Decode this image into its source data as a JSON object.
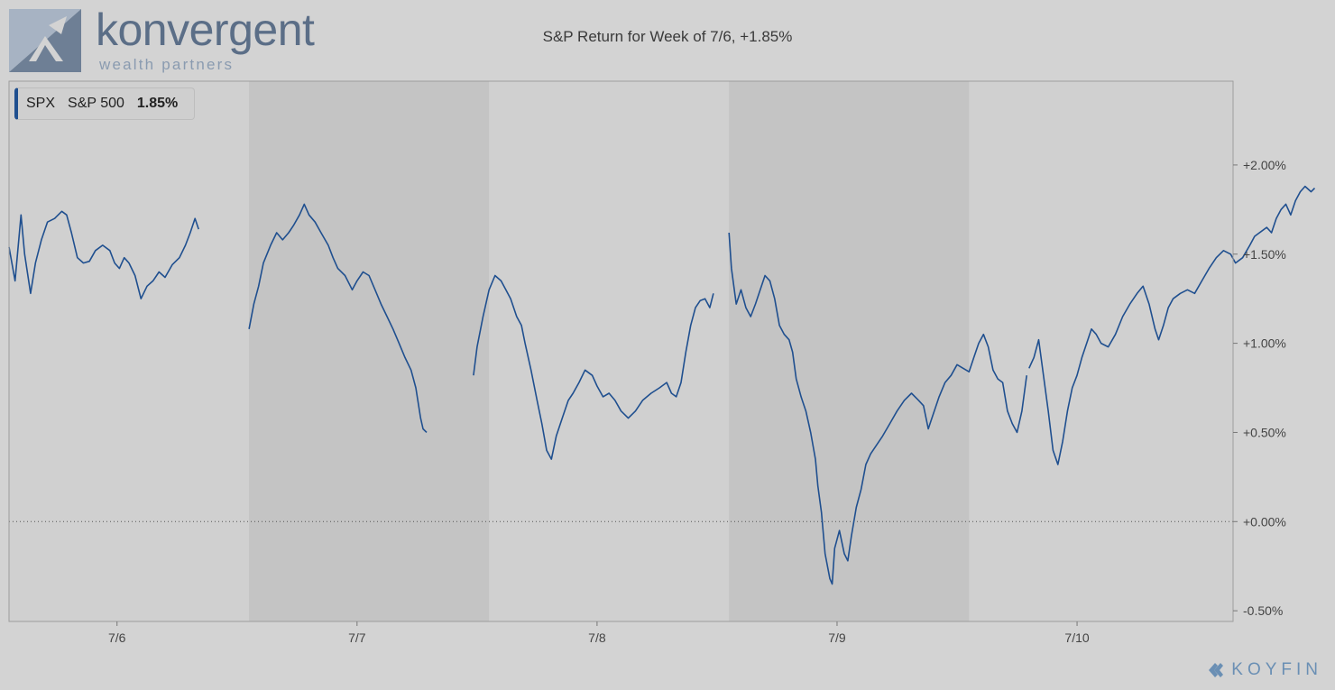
{
  "logo": {
    "name": "konvergent",
    "sub": "wealth partners"
  },
  "chart_data": {
    "type": "line",
    "title": "S&P Return for Week of 7/6, +1.85%",
    "legend": {
      "ticker": "SPX",
      "name": "S&P 500",
      "value": "1.85%"
    },
    "x_labels": [
      "7/6",
      "7/7",
      "7/8",
      "7/9",
      "7/10"
    ],
    "y_ticks": [
      {
        "value": 2.0,
        "label": "+2.00%"
      },
      {
        "value": 1.5,
        "label": "+1.50%"
      },
      {
        "value": 1.0,
        "label": "+1.00%"
      },
      {
        "value": 0.5,
        "label": "+0.50%"
      },
      {
        "value": 0.0,
        "label": "+0.00%"
      },
      {
        "value": -0.5,
        "label": "-0.50%"
      }
    ],
    "ylim": [
      -0.56,
      2.47
    ],
    "xlim": [
      0,
      5.1
    ],
    "zero_line": true,
    "shaded_days": [
      1,
      3
    ],
    "colors": {
      "line": "#1f4f8f",
      "shade": "#c4c4c4",
      "plot_bg": "#d0d0d0",
      "page_bg": "#d3d3d3"
    },
    "series": [
      {
        "name": "S&P 500",
        "sessions": [
          [
            [
              0,
              1.54
            ],
            [
              0.05,
              1.35
            ],
            [
              0.1,
              1.72
            ],
            [
              0.13,
              1.5
            ],
            [
              0.18,
              1.28
            ],
            [
              0.22,
              1.45
            ],
            [
              0.27,
              1.58
            ],
            [
              0.32,
              1.68
            ],
            [
              0.38,
              1.7
            ],
            [
              0.44,
              1.74
            ],
            [
              0.48,
              1.72
            ],
            [
              0.52,
              1.62
            ],
            [
              0.57,
              1.48
            ],
            [
              0.62,
              1.45
            ],
            [
              0.67,
              1.46
            ],
            [
              0.72,
              1.52
            ],
            [
              0.78,
              1.55
            ],
            [
              0.84,
              1.52
            ],
            [
              0.88,
              1.45
            ],
            [
              0.92,
              1.42
            ],
            [
              0.96,
              1.48
            ],
            [
              1.0,
              1.45
            ],
            [
              1.05,
              1.38
            ],
            [
              1.1,
              1.25
            ],
            [
              1.15,
              1.32
            ],
            [
              1.2,
              1.35
            ],
            [
              1.25,
              1.4
            ],
            [
              1.3,
              1.37
            ],
            [
              1.36,
              1.44
            ],
            [
              1.42,
              1.48
            ],
            [
              1.47,
              1.55
            ],
            [
              1.51,
              1.62
            ],
            [
              1.55,
              1.7
            ],
            [
              1.58,
              1.64
            ]
          ],
          [
            [
              2.0,
              1.08
            ],
            [
              2.04,
              1.22
            ],
            [
              2.08,
              1.32
            ],
            [
              2.12,
              1.45
            ],
            [
              2.18,
              1.55
            ],
            [
              2.23,
              1.62
            ],
            [
              2.28,
              1.58
            ],
            [
              2.33,
              1.62
            ],
            [
              2.37,
              1.66
            ],
            [
              2.42,
              1.72
            ],
            [
              2.46,
              1.78
            ],
            [
              2.5,
              1.72
            ],
            [
              2.55,
              1.68
            ],
            [
              2.6,
              1.62
            ],
            [
              2.66,
              1.55
            ],
            [
              2.7,
              1.48
            ],
            [
              2.74,
              1.42
            ],
            [
              2.8,
              1.38
            ],
            [
              2.86,
              1.3
            ],
            [
              2.9,
              1.35
            ],
            [
              2.95,
              1.4
            ],
            [
              3.0,
              1.38
            ],
            [
              3.05,
              1.3
            ],
            [
              3.1,
              1.22
            ],
            [
              3.15,
              1.15
            ],
            [
              3.2,
              1.08
            ],
            [
              3.25,
              1.0
            ],
            [
              3.3,
              0.92
            ],
            [
              3.35,
              0.85
            ],
            [
              3.39,
              0.75
            ],
            [
              3.43,
              0.58
            ],
            [
              3.45,
              0.52
            ],
            [
              3.48,
              0.5
            ]
          ],
          [
            [
              3.87,
              0.82
            ],
            [
              3.9,
              0.98
            ],
            [
              3.95,
              1.15
            ],
            [
              4.0,
              1.3
            ],
            [
              4.05,
              1.38
            ],
            [
              4.1,
              1.35
            ],
            [
              4.14,
              1.3
            ],
            [
              4.18,
              1.25
            ],
            [
              4.23,
              1.15
            ],
            [
              4.27,
              1.1
            ],
            [
              4.3,
              1.0
            ],
            [
              4.35,
              0.85
            ],
            [
              4.4,
              0.68
            ],
            [
              4.44,
              0.55
            ],
            [
              4.48,
              0.4
            ],
            [
              4.52,
              0.35
            ],
            [
              4.56,
              0.48
            ],
            [
              4.61,
              0.58
            ],
            [
              4.66,
              0.68
            ],
            [
              4.7,
              0.72
            ],
            [
              4.75,
              0.78
            ],
            [
              4.8,
              0.85
            ],
            [
              4.86,
              0.82
            ],
            [
              4.9,
              0.76
            ],
            [
              4.95,
              0.7
            ],
            [
              5.0,
              0.72
            ],
            [
              5.05,
              0.68
            ],
            [
              5.1,
              0.62
            ],
            [
              5.16,
              0.58
            ],
            [
              5.22,
              0.62
            ],
            [
              5.28,
              0.68
            ],
            [
              5.35,
              0.72
            ],
            [
              5.42,
              0.75
            ],
            [
              5.48,
              0.78
            ],
            [
              5.52,
              0.72
            ],
            [
              5.56,
              0.7
            ],
            [
              5.6,
              0.78
            ],
            [
              5.64,
              0.95
            ],
            [
              5.68,
              1.1
            ],
            [
              5.72,
              1.2
            ],
            [
              5.76,
              1.24
            ],
            [
              5.8,
              1.25
            ],
            [
              5.84,
              1.2
            ],
            [
              5.87,
              1.28
            ]
          ],
          [
            [
              6.0,
              1.62
            ],
            [
              6.02,
              1.42
            ],
            [
              6.06,
              1.22
            ],
            [
              6.1,
              1.3
            ],
            [
              6.14,
              1.2
            ],
            [
              6.18,
              1.15
            ],
            [
              6.22,
              1.22
            ],
            [
              6.26,
              1.3
            ],
            [
              6.3,
              1.38
            ],
            [
              6.34,
              1.35
            ],
            [
              6.38,
              1.25
            ],
            [
              6.42,
              1.1
            ],
            [
              6.46,
              1.05
            ],
            [
              6.5,
              1.02
            ],
            [
              6.53,
              0.95
            ],
            [
              6.56,
              0.8
            ],
            [
              6.6,
              0.7
            ],
            [
              6.64,
              0.62
            ],
            [
              6.68,
              0.5
            ],
            [
              6.72,
              0.35
            ],
            [
              6.74,
              0.2
            ],
            [
              6.77,
              0.05
            ],
            [
              6.8,
              -0.18
            ],
            [
              6.84,
              -0.32
            ],
            [
              6.86,
              -0.35
            ],
            [
              6.88,
              -0.15
            ],
            [
              6.92,
              -0.05
            ],
            [
              6.96,
              -0.18
            ],
            [
              6.99,
              -0.22
            ],
            [
              7.02,
              -0.08
            ],
            [
              7.06,
              0.08
            ],
            [
              7.1,
              0.18
            ],
            [
              7.14,
              0.32
            ],
            [
              7.18,
              0.38
            ],
            [
              7.22,
              0.42
            ],
            [
              7.28,
              0.48
            ],
            [
              7.34,
              0.55
            ],
            [
              7.4,
              0.62
            ],
            [
              7.46,
              0.68
            ],
            [
              7.52,
              0.72
            ],
            [
              7.58,
              0.68
            ],
            [
              7.62,
              0.65
            ],
            [
              7.66,
              0.52
            ],
            [
              7.7,
              0.6
            ],
            [
              7.75,
              0.7
            ],
            [
              7.8,
              0.78
            ],
            [
              7.85,
              0.82
            ],
            [
              7.9,
              0.88
            ],
            [
              7.95,
              0.86
            ],
            [
              8.0,
              0.84
            ],
            [
              8.04,
              0.92
            ],
            [
              8.08,
              1.0
            ],
            [
              8.12,
              1.05
            ],
            [
              8.16,
              0.98
            ],
            [
              8.2,
              0.85
            ],
            [
              8.24,
              0.8
            ],
            [
              8.28,
              0.78
            ],
            [
              8.32,
              0.62
            ],
            [
              8.36,
              0.55
            ],
            [
              8.4,
              0.5
            ],
            [
              8.44,
              0.62
            ],
            [
              8.48,
              0.82
            ]
          ],
          [
            [
              8.5,
              0.86
            ],
            [
              8.54,
              0.92
            ],
            [
              8.58,
              1.02
            ],
            [
              8.62,
              0.82
            ],
            [
              8.66,
              0.62
            ],
            [
              8.7,
              0.4
            ],
            [
              8.74,
              0.32
            ],
            [
              8.78,
              0.45
            ],
            [
              8.82,
              0.62
            ],
            [
              8.86,
              0.75
            ],
            [
              8.9,
              0.82
            ],
            [
              8.94,
              0.92
            ],
            [
              8.98,
              1.0
            ],
            [
              9.02,
              1.08
            ],
            [
              9.06,
              1.05
            ],
            [
              9.1,
              1.0
            ],
            [
              9.16,
              0.98
            ],
            [
              9.22,
              1.05
            ],
            [
              9.28,
              1.15
            ],
            [
              9.34,
              1.22
            ],
            [
              9.4,
              1.28
            ],
            [
              9.45,
              1.32
            ],
            [
              9.5,
              1.22
            ],
            [
              9.55,
              1.08
            ],
            [
              9.58,
              1.02
            ],
            [
              9.62,
              1.1
            ],
            [
              9.66,
              1.2
            ],
            [
              9.7,
              1.25
            ],
            [
              9.76,
              1.28
            ],
            [
              9.82,
              1.3
            ],
            [
              9.88,
              1.28
            ],
            [
              9.94,
              1.35
            ],
            [
              10.0,
              1.42
            ],
            [
              10.06,
              1.48
            ],
            [
              10.12,
              1.52
            ],
            [
              10.18,
              1.5
            ],
            [
              10.22,
              1.45
            ],
            [
              10.28,
              1.48
            ],
            [
              10.34,
              1.55
            ],
            [
              10.38,
              1.6
            ],
            [
              10.42,
              1.62
            ],
            [
              10.48,
              1.65
            ],
            [
              10.52,
              1.62
            ],
            [
              10.56,
              1.7
            ],
            [
              10.6,
              1.75
            ],
            [
              10.64,
              1.78
            ],
            [
              10.68,
              1.72
            ],
            [
              10.72,
              1.8
            ],
            [
              10.76,
              1.85
            ],
            [
              10.8,
              1.88
            ],
            [
              10.85,
              1.85
            ],
            [
              10.88,
              1.87
            ]
          ]
        ]
      }
    ]
  },
  "brand": {
    "name": "KOYFIN"
  }
}
